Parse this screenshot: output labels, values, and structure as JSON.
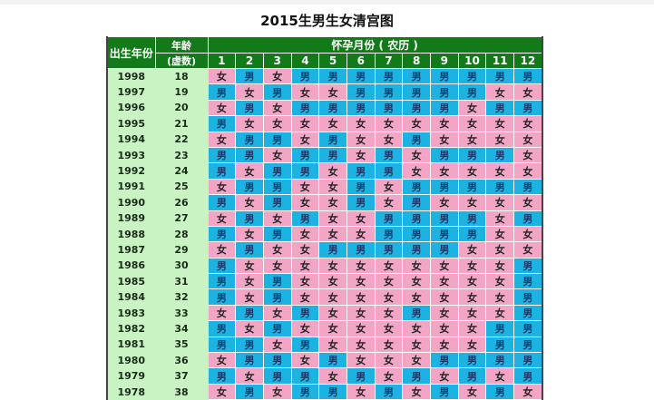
{
  "title": "2015生男生女清宫图",
  "header": {
    "birth_year": "出生年份",
    "age_line1": "年龄",
    "age_line2": "(虚数)",
    "month_group": "怀孕月份 ( 农历 )",
    "months": [
      "1",
      "2",
      "3",
      "4",
      "5",
      "6",
      "7",
      "8",
      "9",
      "10",
      "11",
      "12"
    ]
  },
  "colors": {
    "header": "#137a19",
    "left_cols": "#c9f3c2",
    "girl": "#f3a5c6",
    "boy": "#1cb3e2"
  },
  "rows": [
    {
      "year": "1998",
      "age": "18",
      "cells": [
        "女",
        "男",
        "女",
        "男",
        "男",
        "男",
        "男",
        "男",
        "男",
        "男",
        "男",
        "男"
      ]
    },
    {
      "year": "1997",
      "age": "19",
      "cells": [
        "男",
        "女",
        "男",
        "女",
        "女",
        "男",
        "男",
        "男",
        "男",
        "男",
        "女",
        "女"
      ]
    },
    {
      "year": "1996",
      "age": "20",
      "cells": [
        "女",
        "男",
        "女",
        "男",
        "男",
        "男",
        "男",
        "男",
        "男",
        "女",
        "男",
        "男"
      ]
    },
    {
      "year": "1995",
      "age": "21",
      "cells": [
        "男",
        "女",
        "女",
        "女",
        "女",
        "女",
        "女",
        "女",
        "女",
        "女",
        "女",
        "女"
      ]
    },
    {
      "year": "1994",
      "age": "22",
      "cells": [
        "女",
        "男",
        "男",
        "女",
        "男",
        "女",
        "女",
        "男",
        "女",
        "女",
        "女",
        "女"
      ]
    },
    {
      "year": "1993",
      "age": "23",
      "cells": [
        "男",
        "男",
        "女",
        "男",
        "男",
        "女",
        "男",
        "女",
        "男",
        "男",
        "男",
        "女"
      ]
    },
    {
      "year": "1992",
      "age": "24",
      "cells": [
        "男",
        "女",
        "男",
        "男",
        "女",
        "男",
        "男",
        "女",
        "女",
        "女",
        "女",
        "女"
      ]
    },
    {
      "year": "1991",
      "age": "25",
      "cells": [
        "女",
        "男",
        "男",
        "女",
        "女",
        "男",
        "女",
        "男",
        "男",
        "男",
        "男",
        "男"
      ]
    },
    {
      "year": "1990",
      "age": "26",
      "cells": [
        "男",
        "女",
        "男",
        "女",
        "女",
        "男",
        "女",
        "男",
        "女",
        "女",
        "女",
        "女"
      ]
    },
    {
      "year": "1989",
      "age": "27",
      "cells": [
        "女",
        "男",
        "女",
        "男",
        "女",
        "女",
        "男",
        "男",
        "男",
        "男",
        "女",
        "男"
      ]
    },
    {
      "year": "1988",
      "age": "28",
      "cells": [
        "男",
        "女",
        "男",
        "女",
        "女",
        "女",
        "男",
        "男",
        "男",
        "男",
        "女",
        "女"
      ]
    },
    {
      "year": "1987",
      "age": "29",
      "cells": [
        "女",
        "男",
        "女",
        "女",
        "男",
        "男",
        "男",
        "男",
        "男",
        "女",
        "女",
        "女"
      ]
    },
    {
      "year": "1986",
      "age": "30",
      "cells": [
        "男",
        "女",
        "女",
        "女",
        "女",
        "女",
        "女",
        "女",
        "女",
        "女",
        "女",
        "男"
      ]
    },
    {
      "year": "1985",
      "age": "31",
      "cells": [
        "男",
        "女",
        "男",
        "女",
        "女",
        "女",
        "女",
        "女",
        "女",
        "女",
        "女",
        "男"
      ]
    },
    {
      "year": "1984",
      "age": "32",
      "cells": [
        "男",
        "女",
        "男",
        "女",
        "女",
        "女",
        "女",
        "女",
        "女",
        "女",
        "女",
        "男"
      ]
    },
    {
      "year": "1983",
      "age": "33",
      "cells": [
        "女",
        "男",
        "女",
        "男",
        "女",
        "女",
        "女",
        "男",
        "女",
        "女",
        "女",
        "男"
      ]
    },
    {
      "year": "1982",
      "age": "34",
      "cells": [
        "男",
        "女",
        "男",
        "女",
        "女",
        "女",
        "女",
        "女",
        "女",
        "女",
        "男",
        "男"
      ]
    },
    {
      "year": "1981",
      "age": "35",
      "cells": [
        "男",
        "男",
        "女",
        "男",
        "女",
        "女",
        "女",
        "女",
        "女",
        "女",
        "男",
        "男"
      ]
    },
    {
      "year": "1980",
      "age": "36",
      "cells": [
        "女",
        "男",
        "男",
        "女",
        "男",
        "女",
        "女",
        "女",
        "男",
        "男",
        "男",
        "男"
      ]
    },
    {
      "year": "1979",
      "age": "37",
      "cells": [
        "男",
        "女",
        "男",
        "男",
        "女",
        "男",
        "女",
        "男",
        "女",
        "男",
        "女",
        "男"
      ]
    },
    {
      "year": "1978",
      "age": "38",
      "cells": [
        "女",
        "男",
        "女",
        "男",
        "男",
        "女",
        "男",
        "女",
        "男",
        "女",
        "男",
        "女"
      ]
    }
  ]
}
